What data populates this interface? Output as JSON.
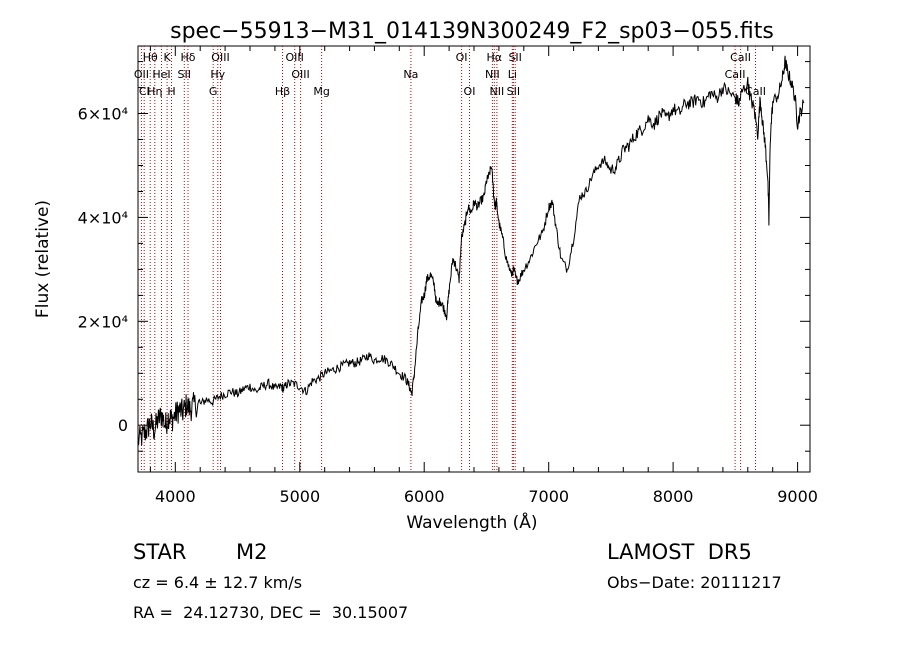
{
  "chart_data": {
    "type": "line",
    "title": "spec−55913−M31_014139N300249_F2_sp03−055.fits",
    "xlabel": "Wavelength (Å)",
    "ylabel": "Flux (relative)",
    "xlim": [
      3700,
      9100
    ],
    "ylim": [
      -9000,
      73000
    ],
    "x_ticks": [
      {
        "value": 4000,
        "label": "4000"
      },
      {
        "value": 5000,
        "label": "5000"
      },
      {
        "value": 6000,
        "label": "6000"
      },
      {
        "value": 7000,
        "label": "7000"
      },
      {
        "value": 8000,
        "label": "8000"
      },
      {
        "value": 9000,
        "label": "9000"
      }
    ],
    "y_ticks": [
      {
        "value": 0,
        "label": "0"
      },
      {
        "value": 20000,
        "label": "2×10⁴"
      },
      {
        "value": 40000,
        "label": "4×10⁴"
      },
      {
        "value": 60000,
        "label": "6×10⁴"
      }
    ],
    "grid": false,
    "series": [
      {
        "color": "#000000",
        "x": [
          3700,
          3740,
          3770,
          3800,
          3830,
          3860,
          3890,
          3920,
          3950,
          3970,
          4000,
          4030,
          4060,
          4090,
          4120,
          4150,
          4200,
          4250,
          4300,
          4350,
          4400,
          4450,
          4500,
          4550,
          4600,
          4650,
          4700,
          4750,
          4800,
          4850,
          4870,
          4900,
          4950,
          5000,
          5050,
          5100,
          5150,
          5200,
          5250,
          5300,
          5350,
          5400,
          5450,
          5500,
          5550,
          5600,
          5650,
          5700,
          5750,
          5800,
          5850,
          5880,
          5900,
          5920,
          5950,
          5980,
          6000,
          6020,
          6050,
          6080,
          6100,
          6130,
          6150,
          6180,
          6200,
          6230,
          6250,
          6280,
          6300,
          6330,
          6350,
          6380,
          6400,
          6430,
          6450,
          6480,
          6500,
          6520,
          6540,
          6560,
          6570,
          6580,
          6600,
          6630,
          6660,
          6700,
          6720,
          6740,
          6760,
          6800,
          6850,
          6900,
          6950,
          7000,
          7030,
          7060,
          7100,
          7150,
          7200,
          7250,
          7300,
          7350,
          7400,
          7450,
          7500,
          7550,
          7600,
          7650,
          7700,
          7750,
          7800,
          7850,
          7900,
          7950,
          8000,
          8050,
          8100,
          8150,
          8200,
          8250,
          8300,
          8350,
          8400,
          8450,
          8500,
          8530,
          8550,
          8600,
          8620,
          8650,
          8680,
          8700,
          8720,
          8740,
          8760,
          8770,
          8780,
          8800,
          8850,
          8880,
          8900,
          8920,
          8950,
          8980,
          9000,
          9020,
          9050
        ],
        "values": [
          -3000,
          -2000,
          -1000,
          500,
          -1000,
          1000,
          2000,
          0,
          2000,
          1000,
          2000,
          3000,
          2500,
          4000,
          3000,
          4000,
          4000,
          5000,
          4500,
          5500,
          6000,
          6500,
          6000,
          7000,
          7500,
          6500,
          7500,
          8000,
          7000,
          7500,
          7000,
          8000,
          8000,
          7500,
          6500,
          8500,
          9000,
          10000,
          10500,
          11000,
          11500,
          12000,
          12000,
          12500,
          13500,
          12500,
          13000,
          12500,
          11500,
          10000,
          9000,
          7500,
          6000,
          10000,
          18000,
          24000,
          25000,
          28000,
          29000,
          27000,
          23000,
          24000,
          23000,
          21000,
          26000,
          32000,
          31000,
          28000,
          36000,
          39000,
          42000,
          41000,
          43000,
          42000,
          43000,
          44000,
          47000,
          48000,
          50000,
          44000,
          42000,
          43000,
          39000,
          36000,
          32000,
          29000,
          30000,
          28000,
          28000,
          30000,
          32000,
          35000,
          37000,
          42000,
          43000,
          38000,
          32000,
          30000,
          36000,
          44000,
          45000,
          48000,
          50000,
          51000,
          49000,
          50000,
          53000,
          54000,
          56000,
          57000,
          59000,
          58000,
          60000,
          59000,
          61000,
          60000,
          62000,
          62000,
          63000,
          62000,
          64000,
          63000,
          65000,
          64000,
          63000,
          62000,
          64000,
          66000,
          63000,
          61000,
          56000,
          63000,
          58000,
          54000,
          48000,
          39000,
          55000,
          62000,
          64000,
          67000,
          70000,
          68000,
          66000,
          63000,
          58000,
          60000,
          62000
        ]
      }
    ],
    "line_labels": [
      {
        "label": "Hθ",
        "wavelength": 3798,
        "row": 1
      },
      {
        "label": "OII",
        "wavelength": 3727,
        "row": 2
      },
      {
        "label": "Cl",
        "wavelength": 3750,
        "row": 3
      },
      {
        "label": "Hη",
        "wavelength": 3835,
        "row": 3
      },
      {
        "label": "HeI",
        "wavelength": 3889,
        "row": 2
      },
      {
        "label": "K",
        "wavelength": 3934,
        "row": 1
      },
      {
        "label": "H",
        "wavelength": 3969,
        "row": 3
      },
      {
        "label": "SII",
        "wavelength": 4072,
        "row": 2
      },
      {
        "label": "Hδ",
        "wavelength": 4102,
        "row": 1
      },
      {
        "label": "OIII",
        "wavelength": 4363,
        "row": 1
      },
      {
        "label": "Hγ",
        "wavelength": 4341,
        "row": 2
      },
      {
        "label": "G",
        "wavelength": 4304,
        "row": 3
      },
      {
        "label": "Hβ",
        "wavelength": 4861,
        "row": 3
      },
      {
        "label": "OIII",
        "wavelength": 4959,
        "row": 1
      },
      {
        "label": "OIII",
        "wavelength": 5007,
        "row": 2
      },
      {
        "label": "Mg",
        "wavelength": 5175,
        "row": 3
      },
      {
        "label": "Na",
        "wavelength": 5893,
        "row": 2
      },
      {
        "label": "OI",
        "wavelength": 6300,
        "row": 1
      },
      {
        "label": "OI",
        "wavelength": 6364,
        "row": 3
      },
      {
        "label": "Hα",
        "wavelength": 6563,
        "row": 1
      },
      {
        "label": "SII",
        "wavelength": 6731,
        "row": 1
      },
      {
        "label": "NII",
        "wavelength": 6548,
        "row": 2
      },
      {
        "label": "Li",
        "wavelength": 6708,
        "row": 2
      },
      {
        "label": "NII",
        "wavelength": 6584,
        "row": 3
      },
      {
        "label": "SII",
        "wavelength": 6717,
        "row": 3
      },
      {
        "label": "CaII",
        "wavelength": 8542,
        "row": 1
      },
      {
        "label": "CaII",
        "wavelength": 8498,
        "row": 2
      },
      {
        "label": "CaII",
        "wavelength": 8662,
        "row": 3
      }
    ],
    "marker_lines": [
      3727,
      3750,
      3798,
      3835,
      3889,
      3934,
      3969,
      4072,
      4102,
      4304,
      4341,
      4363,
      4861,
      4959,
      5007,
      5175,
      5893,
      6300,
      6364,
      6548,
      6563,
      6584,
      6708,
      6717,
      6731,
      8498,
      8542,
      8662
    ],
    "marker_color": "#cc0000"
  },
  "info": {
    "object_class": "STAR",
    "subclass": "M2",
    "survey": "LAMOST  DR5",
    "redshift_text": "cz = 6.4 ± 12.7 km/s",
    "obs_date": "Obs−Date: 20111217",
    "coords": "RA =  24.12730, DEC =  30.15007"
  }
}
